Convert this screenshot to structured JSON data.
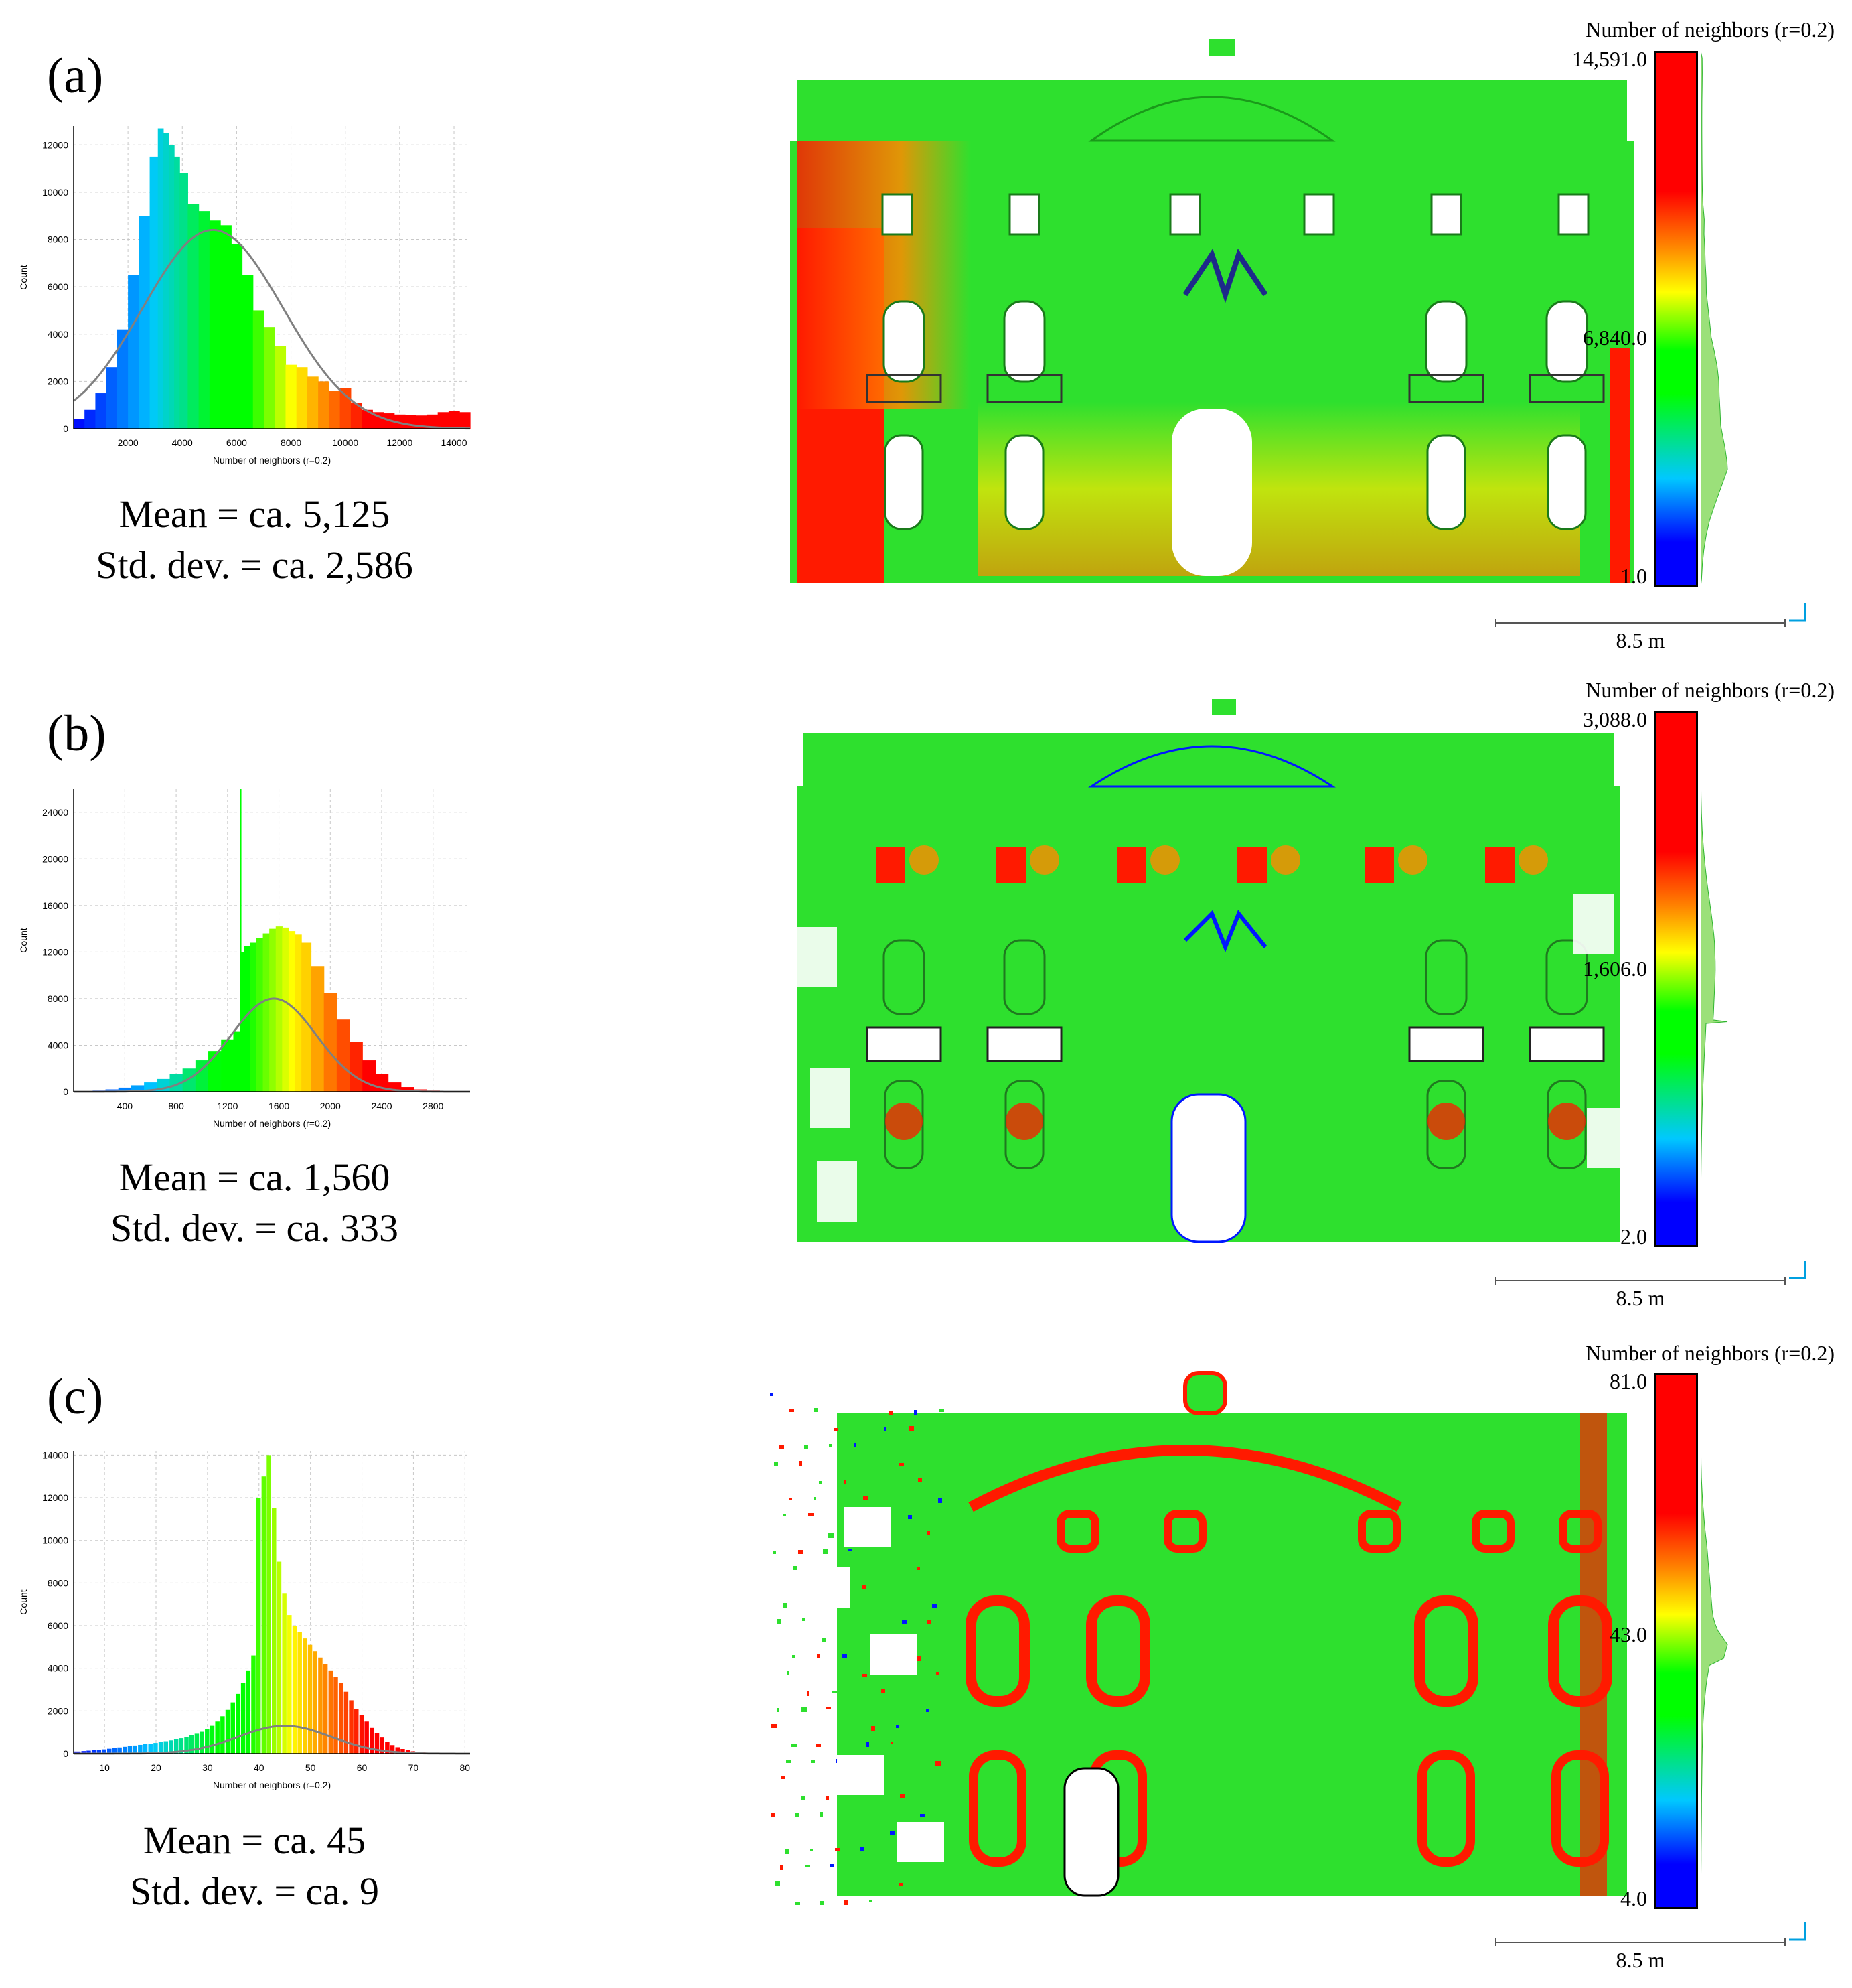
{
  "panels": [
    {
      "label": "(a)",
      "stats": {
        "mean": "Mean = ca. 5,125",
        "std": "Std. dev. = ca. 2,586"
      },
      "colorbar": {
        "title": "Number of neighbors (r=0.2)",
        "max": "14,591.0",
        "mid": "6,840.0",
        "min": "1.0"
      },
      "scale_label": "8.5 m"
    },
    {
      "label": "(b)",
      "stats": {
        "mean": "Mean = ca. 1,560",
        "std": "Std. dev. = ca. 333"
      },
      "colorbar": {
        "title": "Number of neighbors (r=0.2)",
        "max": "3,088.0",
        "mid": "1,606.0",
        "min": "2.0"
      },
      "scale_label": "8.5 m"
    },
    {
      "label": "(c)",
      "stats": {
        "mean": "Mean = ca. 45",
        "std": "Std. dev. = ca. 9"
      },
      "colorbar": {
        "title": "Number of neighbors (r=0.2)",
        "max": "81.0",
        "mid": "43.0",
        "min": "4.0"
      },
      "scale_label": "8.5 m"
    }
  ],
  "chart_data": [
    {
      "type": "bar",
      "title": "",
      "xlabel": "Number of neighbors (r=0.2)",
      "ylabel": "Count",
      "xlim": [
        1,
        14591
      ],
      "ylim": [
        0,
        12800
      ],
      "xticks": [
        2000,
        4000,
        6000,
        8000,
        10000,
        12000,
        14000
      ],
      "yticks": [
        0,
        2000,
        4000,
        6000,
        8000,
        10000,
        12000
      ],
      "x": [
        200,
        600,
        1000,
        1400,
        1800,
        2200,
        2600,
        3000,
        3200,
        3400,
        3600,
        3800,
        4000,
        4400,
        4800,
        5200,
        5600,
        6000,
        6400,
        6800,
        7200,
        7600,
        8000,
        8400,
        8800,
        9200,
        9600,
        10000,
        10400,
        10800,
        11200,
        11600,
        12000,
        12400,
        12800,
        13200,
        13600,
        14000,
        14400
      ],
      "values": [
        400,
        800,
        1500,
        2600,
        4200,
        6500,
        9000,
        11500,
        12700,
        12500,
        12000,
        11500,
        10800,
        9500,
        9200,
        8800,
        8600,
        7800,
        6500,
        5000,
        4300,
        3500,
        2700,
        2600,
        2200,
        2000,
        1600,
        1700,
        1100,
        800,
        700,
        650,
        600,
        580,
        560,
        600,
        700,
        750,
        700
      ],
      "normal_fit": {
        "mean": 5125,
        "std": 2586,
        "peak": 8400
      }
    },
    {
      "type": "bar",
      "title": "",
      "xlabel": "Number of neighbors (r=0.2)",
      "ylabel": "Count",
      "xlim": [
        2,
        3088
      ],
      "ylim": [
        0,
        26000
      ],
      "xticks": [
        400,
        800,
        1200,
        1600,
        2000,
        2400,
        2800
      ],
      "yticks": [
        0,
        4000,
        8000,
        12000,
        16000,
        20000,
        24000
      ],
      "x": [
        100,
        200,
        300,
        400,
        500,
        600,
        700,
        800,
        900,
        1000,
        1100,
        1200,
        1290,
        1300,
        1310,
        1350,
        1400,
        1450,
        1500,
        1550,
        1600,
        1650,
        1700,
        1750,
        1800,
        1900,
        2000,
        2100,
        2200,
        2300,
        2400,
        2500,
        2600,
        2700,
        2800,
        2900,
        3000
      ],
      "values": [
        50,
        100,
        200,
        350,
        550,
        800,
        1100,
        1500,
        2000,
        2700,
        3500,
        4500,
        5200,
        26000,
        12000,
        12500,
        12800,
        13200,
        13600,
        14000,
        14200,
        14100,
        13800,
        13500,
        12800,
        10800,
        8500,
        6200,
        4300,
        2700,
        1500,
        800,
        400,
        200,
        100,
        50,
        20
      ],
      "normal_fit": {
        "mean": 1560,
        "std": 333,
        "peak": 8000
      }
    },
    {
      "type": "bar",
      "title": "",
      "xlabel": "Number of neighbors (r=0.2)",
      "ylabel": "Count",
      "xlim": [
        4,
        81
      ],
      "ylim": [
        0,
        14200
      ],
      "xticks": [
        10,
        20,
        30,
        40,
        50,
        60,
        70,
        80
      ],
      "yticks": [
        0,
        2000,
        4000,
        6000,
        8000,
        10000,
        12000,
        14000
      ],
      "x": [
        5,
        6,
        7,
        8,
        9,
        10,
        11,
        12,
        13,
        14,
        15,
        16,
        17,
        18,
        19,
        20,
        21,
        22,
        23,
        24,
        25,
        26,
        27,
        28,
        29,
        30,
        31,
        32,
        33,
        34,
        35,
        36,
        37,
        38,
        39,
        40,
        41,
        42,
        43,
        44,
        45,
        46,
        47,
        48,
        49,
        50,
        51,
        52,
        53,
        54,
        55,
        56,
        57,
        58,
        59,
        60,
        61,
        62,
        63,
        64,
        65,
        66,
        67,
        68,
        69,
        70,
        71,
        72,
        73,
        74,
        75,
        76,
        77,
        78,
        79,
        80
      ],
      "values": [
        100,
        120,
        140,
        160,
        180,
        200,
        230,
        260,
        290,
        320,
        350,
        380,
        410,
        440,
        470,
        500,
        540,
        580,
        620,
        670,
        720,
        780,
        850,
        930,
        1020,
        1150,
        1300,
        1500,
        1750,
        2050,
        2400,
        2800,
        3300,
        3900,
        4600,
        12000,
        13000,
        14000,
        11500,
        9000,
        7500,
        6500,
        6000,
        5700,
        5400,
        5100,
        4800,
        4500,
        4200,
        3900,
        3600,
        3300,
        2900,
        2500,
        2100,
        1800,
        1500,
        1200,
        950,
        750,
        550,
        400,
        300,
        220,
        160,
        110,
        80,
        60,
        40,
        30,
        20,
        15,
        10,
        8,
        5,
        3
      ],
      "normal_fit": {
        "mean": 45,
        "std": 9,
        "peak": 1300
      }
    }
  ]
}
